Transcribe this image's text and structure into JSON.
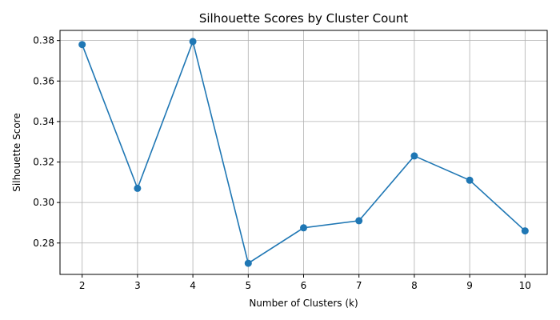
{
  "chart_data": {
    "type": "line",
    "title": "Silhouette Scores by Cluster Count",
    "xlabel": "Number of Clusters (k)",
    "ylabel": "Silhouette Score",
    "x": [
      2,
      3,
      4,
      5,
      6,
      7,
      8,
      9,
      10
    ],
    "series": [
      {
        "values": [
          0.378,
          0.307,
          0.3795,
          0.27,
          0.2875,
          0.291,
          0.323,
          0.311,
          0.286
        ],
        "color": "#1f77b4",
        "marker": "circle"
      }
    ],
    "xlim": [
      1.6,
      10.4
    ],
    "ylim": [
      0.2645,
      0.385
    ],
    "xticks": [
      2,
      3,
      4,
      5,
      6,
      7,
      8,
      9,
      10
    ],
    "yticks": [
      0.28,
      0.3,
      0.32,
      0.34,
      0.36,
      0.38
    ],
    "ytick_labels": [
      "0.28",
      "0.30",
      "0.32",
      "0.34",
      "0.36",
      "0.38"
    ],
    "grid": true,
    "legend": false
  }
}
